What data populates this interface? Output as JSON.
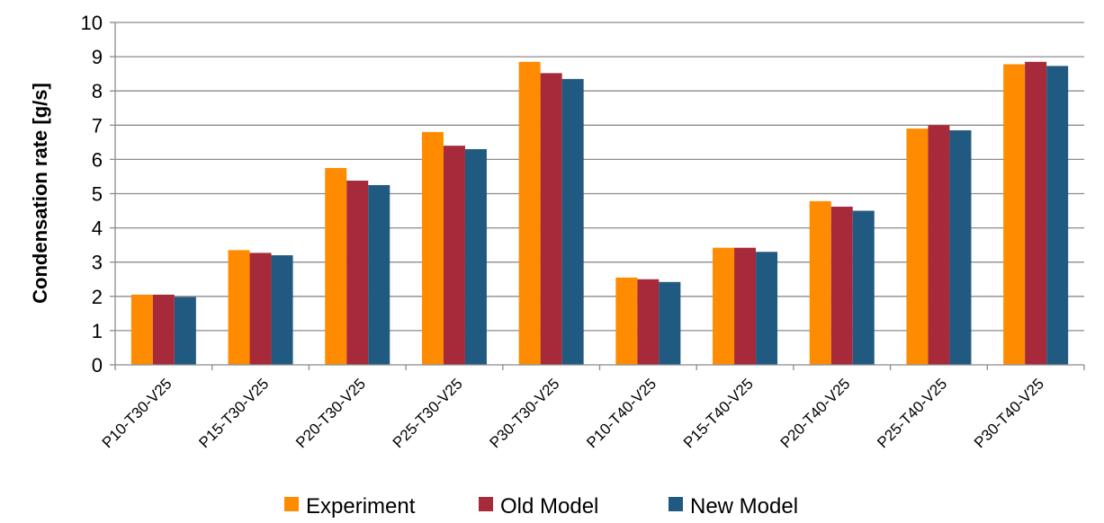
{
  "chart_data": {
    "type": "bar",
    "title": "",
    "xlabel": "",
    "ylabel": "Condensation rate [g/s]",
    "ylim": [
      0,
      10
    ],
    "yticks": [
      0,
      1,
      2,
      3,
      4,
      5,
      6,
      7,
      8,
      9,
      10
    ],
    "grid": true,
    "legend_position": "bottom",
    "categories": [
      "P10-T30-V25",
      "P15-T30-V25",
      "P20-T30-V25",
      "P25-T30-V25",
      "P30-T30-V25",
      "P10-T40-V25",
      "P15-T40-V25",
      "P20-T40-V25",
      "P25-T40-V25",
      "P30-T40-V25"
    ],
    "series": [
      {
        "name": "Experiment",
        "color": "#ff8c00",
        "values": [
          2.05,
          3.35,
          5.75,
          6.8,
          8.85,
          2.55,
          3.42,
          4.78,
          6.9,
          8.78
        ]
      },
      {
        "name": "Old Model",
        "color": "#a62a3a",
        "values": [
          2.05,
          3.27,
          5.38,
          6.4,
          8.52,
          2.5,
          3.42,
          4.62,
          7.0,
          8.85
        ]
      },
      {
        "name": "New Model",
        "color": "#215a80",
        "values": [
          1.98,
          3.2,
          5.25,
          6.3,
          8.35,
          2.42,
          3.3,
          4.5,
          6.85,
          8.73
        ]
      }
    ]
  }
}
